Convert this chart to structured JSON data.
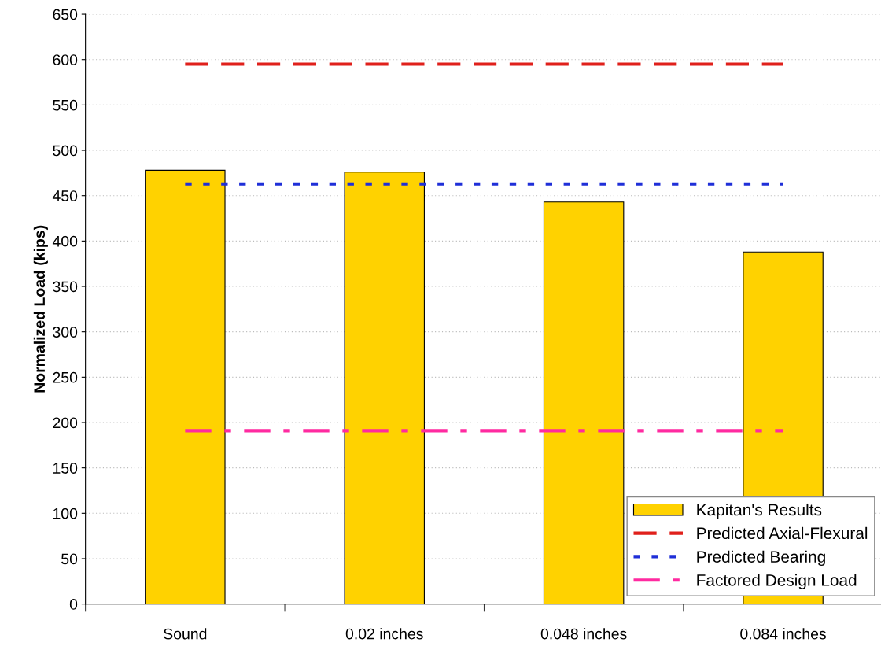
{
  "chart_data": {
    "type": "bar",
    "ylabel": "Normalized Load (kips)",
    "categories": [
      "Sound",
      "0.02 inches",
      "0.048 inches",
      "0.084 inches"
    ],
    "series": [
      {
        "name": "Kapitan's Results",
        "color": "#ffd200",
        "values": [
          478,
          476,
          443,
          388
        ]
      },
      {
        "name": "Predicted Axial-Flexural",
        "type": "line",
        "color": "#e0201b",
        "line_style": "dashed",
        "values": [
          595,
          595,
          595,
          595
        ]
      },
      {
        "name": "Predicted Bearing",
        "type": "line",
        "color": "#1f2fd8",
        "line_style": "dotted",
        "values": [
          463,
          463,
          463,
          463
        ]
      },
      {
        "name": "Factored Design Load",
        "type": "line",
        "color": "#ff2aa0",
        "line_style": "dashdot",
        "values": [
          191,
          191,
          191,
          191
        ]
      }
    ],
    "ylim": [
      0,
      650
    ],
    "yticks": [
      0,
      50,
      100,
      150,
      200,
      250,
      300,
      350,
      400,
      450,
      500,
      550,
      600,
      650
    ],
    "grid": "y",
    "legend": "bottom right",
    "marker": "none"
  }
}
